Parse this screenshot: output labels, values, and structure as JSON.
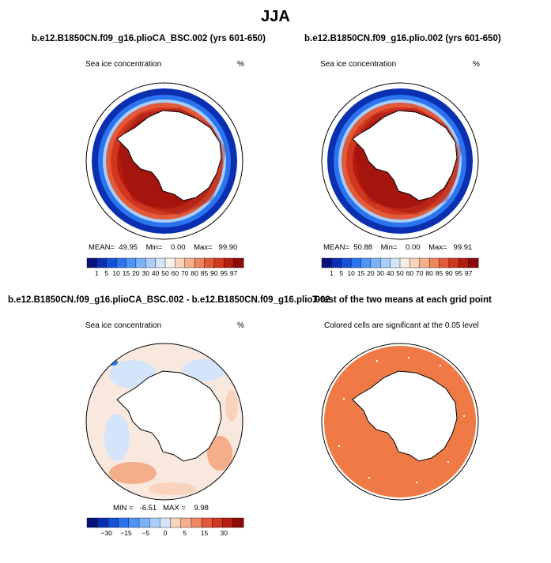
{
  "figure_title": "JJA",
  "colors": {
    "sig_color": "#f07a45",
    "cmap_abs": [
      "#08127a",
      "#0a2fb0",
      "#1550d8",
      "#2a74ef",
      "#4e95f6",
      "#7ab3fa",
      "#a8cdfb",
      "#d4e5fb",
      "#f8efe6",
      "#f9d3bb",
      "#f5ae8a",
      "#ee8460",
      "#e35a3a",
      "#d1361f",
      "#b41c10",
      "#8c0a08"
    ],
    "cmap_diff": [
      "#08127a",
      "#0a2fb0",
      "#1550d8",
      "#2a74ef",
      "#4e95f6",
      "#7ab3fa",
      "#a8cdfb",
      "#d4e5fb",
      "#f9d3bb",
      "#f5ae8a",
      "#ee8460",
      "#e35a3a",
      "#d1361f",
      "#b41c10",
      "#8c0a08"
    ]
  },
  "panels": [
    {
      "title": "b.e12.B1850CN.f09_g16.plioCA_BSC.002 (yrs 601-650)",
      "variable": "Sea ice concentration",
      "units": "%",
      "stats": {
        "mean_label": "MEAN=",
        "mean": "49.95",
        "min_label": "Min=",
        "min": "0.00",
        "max_label": "Max=",
        "max": "99.90"
      },
      "colorbar_labels": [
        "1",
        "5",
        "10",
        "15",
        "20",
        "30",
        "40",
        "50",
        "60",
        "70",
        "80",
        "85",
        "90",
        "95",
        "97"
      ]
    },
    {
      "title": "b.e12.B1850CN.f09_g16.plio.002 (yrs 601-650)",
      "variable": "Sea ice concentration",
      "units": "%",
      "stats": {
        "mean_label": "MEAN=",
        "mean": "50.88",
        "min_label": "Min=",
        "min": "0.00",
        "max_label": "Max=",
        "max": "99.91"
      },
      "colorbar_labels": [
        "1",
        "5",
        "10",
        "15",
        "20",
        "30",
        "40",
        "50",
        "60",
        "70",
        "80",
        "85",
        "90",
        "95",
        "97"
      ]
    },
    {
      "title": "b.e12.B1850CN.f09_g16.plioCA_BSC.002 - b.e12.B1850CN.f09_g16.plio.002",
      "variable": "Sea ice concentration",
      "units": "%",
      "stats": {
        "min_label": "MIN =",
        "min": "-6.51",
        "max_label": "MAX =",
        "max": "9.98"
      },
      "colorbar_labels": [
        "−30",
        "−15",
        "−5",
        "0",
        "5",
        "15",
        "30"
      ]
    },
    {
      "title": "T-test of the two means at each grid point",
      "subtitle": "Colored cells are significant at the 0.05 level"
    }
  ]
}
